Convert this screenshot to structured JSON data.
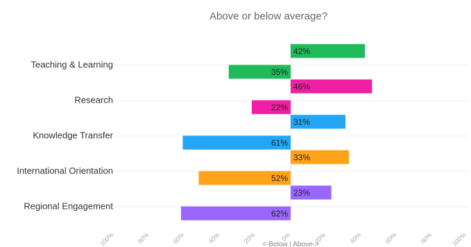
{
  "chart_data": {
    "type": "bar",
    "orientation": "horizontal-diverging",
    "title": "Above or below average?",
    "xlabel": "<-Below | Above->",
    "ylabel": "",
    "xlim": [
      -100,
      100
    ],
    "categories": [
      "Teaching & Learning",
      "Research",
      "Knowledge Transfer",
      "International Orientation",
      "Regional Engagement"
    ],
    "series": [
      {
        "values": [
          42,
          46,
          31,
          33,
          23
        ],
        "labels": [
          "42%",
          "46%",
          "31%",
          "33%",
          "23%"
        ]
      },
      {
        "values": [
          -35,
          -22,
          -61,
          -52,
          -62
        ],
        "labels": [
          "35%",
          "22%",
          "61%",
          "52%",
          "62%"
        ]
      }
    ],
    "colors": [
      "#1fbb5a",
      "#f01fa4",
      "#22a6f5",
      "#ffa41a",
      "#9966ff"
    ],
    "ticks": [
      -100,
      -80,
      -60,
      -40,
      -20,
      0,
      20,
      40,
      60,
      80,
      100
    ],
    "tick_labels": [
      "100%",
      "80%",
      "60%",
      "40%",
      "20%",
      "0%",
      "20%",
      "40%",
      "60%",
      "80%",
      "100%"
    ],
    "grid": true,
    "legend": "none"
  }
}
